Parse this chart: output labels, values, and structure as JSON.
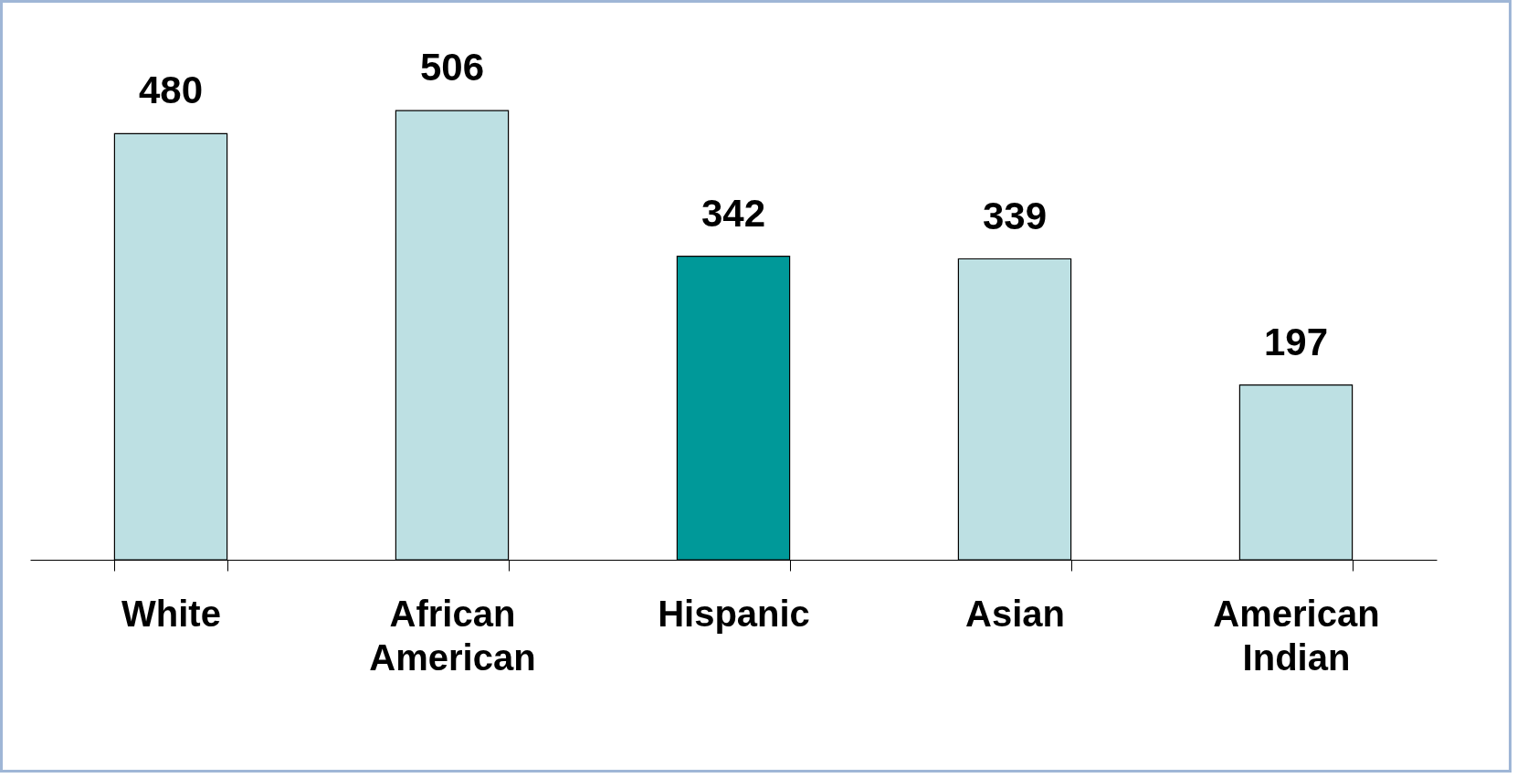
{
  "chart_data": {
    "type": "bar",
    "categories": [
      "White",
      "African American",
      "Hispanic",
      "Asian",
      "American Indian"
    ],
    "values": [
      480,
      506,
      342,
      339,
      197
    ],
    "colors": [
      "#bde0e3",
      "#bde0e3",
      "#009999",
      "#bde0e3",
      "#bde0e3"
    ],
    "data_labels": true,
    "grid": false
  }
}
